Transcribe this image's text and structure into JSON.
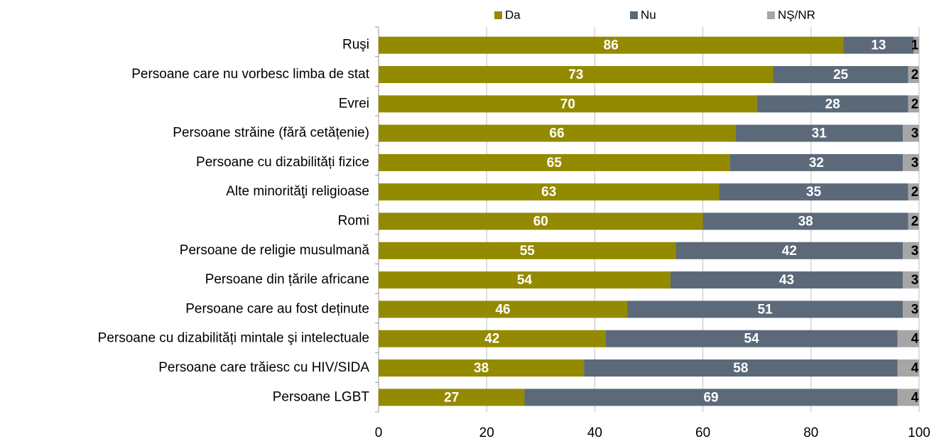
{
  "chart_data": {
    "type": "stacked_bar_horizontal",
    "categories": [
      "Ruşi",
      "Persoane care nu vorbesc limba de stat",
      "Evrei",
      "Persoane străine (fără cetățenie)",
      "Persoane cu dizabilități fizice",
      "Alte minorităţi religioase",
      "Romi",
      "Persoane de religie musulmană",
      "Persoane din țările africane",
      "Persoane care au fost deținute",
      "Persoane cu dizabilități mintale şi intelectuale",
      "Persoane care trăiesc cu HIV/SIDA",
      "Persoane LGBT"
    ],
    "series": [
      {
        "name": "Da",
        "color": "#948a00",
        "values": [
          86,
          73,
          70,
          66,
          65,
          63,
          60,
          55,
          54,
          46,
          42,
          38,
          27
        ]
      },
      {
        "name": "Nu",
        "color": "#5b6979",
        "values": [
          13,
          25,
          28,
          31,
          32,
          35,
          38,
          42,
          43,
          51,
          54,
          58,
          69
        ]
      },
      {
        "name": "NŞ/NR",
        "color": "#a6a6a6",
        "values": [
          1,
          2,
          2,
          3,
          3,
          2,
          2,
          3,
          3,
          3,
          4,
          4,
          4
        ]
      }
    ],
    "xlim": [
      0,
      100
    ],
    "xticks": [
      0,
      20,
      40,
      60,
      80,
      100
    ],
    "grid": true,
    "legend": "top"
  }
}
